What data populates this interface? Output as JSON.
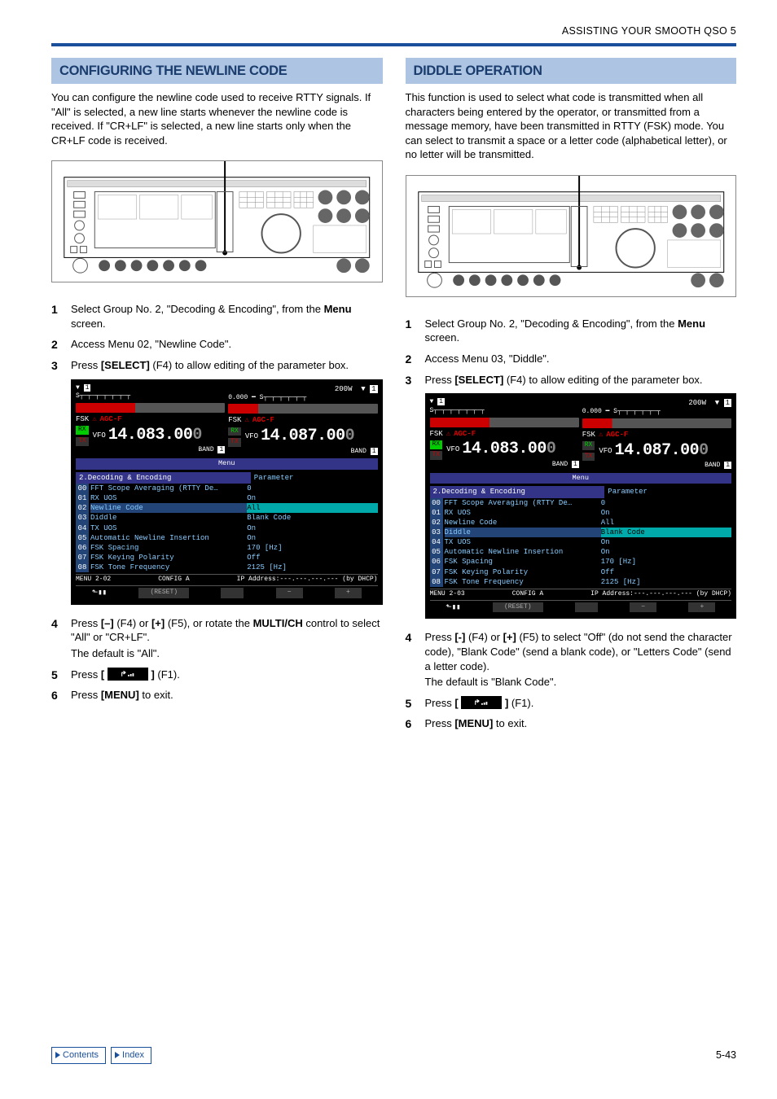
{
  "header": "ASSISTING YOUR SMOOTH QSO 5",
  "left": {
    "title": "CONFIGURING THE NEWLINE CODE",
    "intro": "You can configure the newline code used to receive RTTY signals. If \"All\" is selected, a new line starts whenever the newline code is received. If \"CR+LF\" is selected, a new line starts only when the CR+LF code is received.",
    "steps": {
      "s1a": "Select Group No. 2, \"Decoding & Encoding\", from the ",
      "s1b": "Menu",
      "s1c": " screen.",
      "s2": "Access Menu 02, \"Newline Code\".",
      "s3a": "Press ",
      "s3b": "[SELECT]",
      "s3c": " (F4) to allow editing of the parameter box.",
      "s4a": "Press ",
      "s4b": "[–]",
      "s4c": " (F4) or ",
      "s4d": "[+]",
      "s4e": " (F5), or rotate the ",
      "s4f": "MULTI/CH",
      "s4g": " control to select \"All\" or \"CR+LF\".",
      "s4h": "The default is \"All\".",
      "s5a": "Press ",
      "s5b": "[",
      "s5c": "]",
      "s5d": " (F1).",
      "s6a": "Press ",
      "s6b": "[MENU]",
      "s6c": " to exit."
    },
    "lcd": {
      "pw": "200W",
      "fsk": "FSK",
      "agc": "AGC-F",
      "vfo": "VFO",
      "freq1": "14.083.00",
      "freq2": "14.087.00",
      "band": "BAND",
      "menubar": "Menu",
      "group": "2.Decoding & Encoding",
      "param": "Parameter",
      "rows": [
        {
          "n": "00",
          "l": "FFT Scope Averaging (RTTY De…",
          "v": "0"
        },
        {
          "n": "01",
          "l": "RX UOS",
          "v": "On"
        },
        {
          "n": "02",
          "l": "Newline Code",
          "v": "All",
          "sel": true
        },
        {
          "n": "03",
          "l": "Diddle",
          "v": "Blank Code"
        },
        {
          "n": "04",
          "l": "TX UOS",
          "v": "On"
        },
        {
          "n": "05",
          "l": "Automatic Newline Insertion",
          "v": "On"
        },
        {
          "n": "06",
          "l": "FSK Spacing",
          "v": "170 [Hz]"
        },
        {
          "n": "07",
          "l": "FSK Keying Polarity",
          "v": "Off"
        },
        {
          "n": "08",
          "l": "FSK Tone Frequency",
          "v": "2125 [Hz]"
        }
      ],
      "foot1a": "MENU 2-02",
      "foot1b": "CONFIG A",
      "foot1c": "IP Address:---.---.---.--- (by DHCP)",
      "foot2b": "(RESET)",
      "foot2c": "−",
      "foot2d": "+"
    }
  },
  "right": {
    "title": "DIDDLE OPERATION",
    "intro": "This function is used to select what code is transmitted when all characters being entered by the operator, or transmitted from a message memory, have been transmitted in RTTY (FSK) mode. You can select to transmit a space or a letter code (alphabetical letter), or no letter will be transmitted.",
    "steps": {
      "s1a": "Select Group No. 2, \"Decoding & Encoding\", from the ",
      "s1b": "Menu",
      "s1c": " screen.",
      "s2": "Access Menu 03, \"Diddle\".",
      "s3a": "Press ",
      "s3b": "[SELECT]",
      "s3c": " (F4) to allow editing of the parameter box.",
      "s4a": "Press ",
      "s4b": "[-]",
      "s4c": " (F4) or ",
      "s4d": "[+]",
      "s4e": " (F5) to select \"Off\" (do not send the character code), \"Blank Code\" (send a blank code), or \"Letters Code\" (send a letter code).",
      "s4h": "The default is \"Blank Code\".",
      "s5a": "Press ",
      "s5b": "[",
      "s5c": "]",
      "s5d": " (F1).",
      "s6a": "Press ",
      "s6b": "[MENU]",
      "s6c": " to exit."
    },
    "lcd": {
      "pw": "200W",
      "fsk": "FSK",
      "agc": "AGC-F",
      "vfo": "VFO",
      "freq1": "14.083.00",
      "freq2": "14.087.00",
      "band": "BAND",
      "menubar": "Menu",
      "group": "2.Decoding & Encoding",
      "param": "Parameter",
      "rows": [
        {
          "n": "00",
          "l": "FFT Scope Averaging (RTTY De…",
          "v": "0"
        },
        {
          "n": "01",
          "l": "RX UOS",
          "v": "On"
        },
        {
          "n": "02",
          "l": "Newline Code",
          "v": "All"
        },
        {
          "n": "03",
          "l": "Diddle",
          "v": "Blank Code",
          "sel": true
        },
        {
          "n": "04",
          "l": "TX UOS",
          "v": "On"
        },
        {
          "n": "05",
          "l": "Automatic Newline Insertion",
          "v": "On"
        },
        {
          "n": "06",
          "l": "FSK Spacing",
          "v": "170 [Hz]"
        },
        {
          "n": "07",
          "l": "FSK Keying Polarity",
          "v": "Off"
        },
        {
          "n": "08",
          "l": "FSK Tone Frequency",
          "v": "2125 [Hz]"
        }
      ],
      "foot1a": "MENU 2-03",
      "foot1b": "CONFIG A",
      "foot1c": "IP Address:---.---.---.--- (by DHCP)",
      "foot2b": "(RESET)",
      "foot2c": "−",
      "foot2d": "+"
    }
  },
  "footer": {
    "contents": "Contents",
    "index": "Index",
    "page": "5-43"
  }
}
